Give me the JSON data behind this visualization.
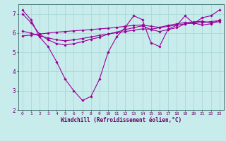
{
  "xlabel": "Windchill (Refroidissement éolien,°C)",
  "xlim": [
    -0.5,
    23.5
  ],
  "ylim": [
    2,
    7.5
  ],
  "xticks": [
    0,
    1,
    2,
    3,
    4,
    5,
    6,
    7,
    8,
    9,
    10,
    11,
    12,
    13,
    14,
    15,
    16,
    17,
    18,
    19,
    20,
    21,
    22,
    23
  ],
  "yticks": [
    2,
    3,
    4,
    5,
    6,
    7
  ],
  "background_color": "#c8ecec",
  "grid_color": "#aad8d8",
  "line_color": "#990099",
  "lines": [
    {
      "x": [
        0,
        1,
        2,
        3,
        4,
        5,
        6,
        7,
        8,
        9,
        10,
        11,
        12,
        13,
        14,
        15,
        16,
        17,
        18,
        19,
        20,
        21,
        22,
        23
      ],
      "y": [
        7.2,
        6.7,
        5.8,
        5.3,
        4.5,
        3.6,
        3.0,
        2.5,
        2.7,
        3.6,
        5.0,
        5.8,
        6.3,
        6.9,
        6.7,
        5.5,
        5.3,
        6.2,
        6.4,
        6.9,
        6.5,
        6.8,
        6.9,
        7.2
      ]
    },
    {
      "x": [
        0,
        1,
        2,
        3,
        4,
        5,
        6,
        7,
        8,
        9,
        10,
        11,
        12,
        13,
        14,
        15,
        16,
        17,
        18,
        19,
        20,
        21,
        22,
        23
      ],
      "y": [
        6.1,
        6.0,
        5.85,
        5.75,
        5.65,
        5.6,
        5.65,
        5.72,
        5.8,
        5.88,
        5.95,
        6.02,
        6.08,
        6.15,
        6.22,
        6.2,
        6.28,
        6.35,
        6.42,
        6.48,
        6.52,
        6.55,
        6.6,
        6.65
      ]
    },
    {
      "x": [
        0,
        1,
        2,
        3,
        4,
        5,
        6,
        7,
        8,
        9,
        10,
        11,
        12,
        13,
        14,
        15,
        16,
        17,
        18,
        19,
        20,
        21,
        22,
        23
      ],
      "y": [
        5.85,
        5.9,
        5.95,
        6.0,
        6.05,
        6.08,
        6.12,
        6.15,
        6.18,
        6.22,
        6.25,
        6.3,
        6.35,
        6.4,
        6.42,
        6.35,
        6.3,
        6.4,
        6.48,
        6.55,
        6.58,
        6.62,
        6.52,
        6.6
      ]
    },
    {
      "x": [
        0,
        1,
        2,
        3,
        4,
        5,
        6,
        7,
        8,
        9,
        10,
        11,
        12,
        13,
        14,
        15,
        16,
        17,
        18,
        19,
        20,
        21,
        22,
        23
      ],
      "y": [
        7.0,
        6.55,
        5.95,
        5.65,
        5.45,
        5.38,
        5.45,
        5.55,
        5.68,
        5.78,
        5.95,
        6.05,
        6.18,
        6.28,
        6.38,
        6.18,
        6.08,
        6.18,
        6.28,
        6.48,
        6.52,
        6.42,
        6.48,
        6.68
      ]
    }
  ]
}
